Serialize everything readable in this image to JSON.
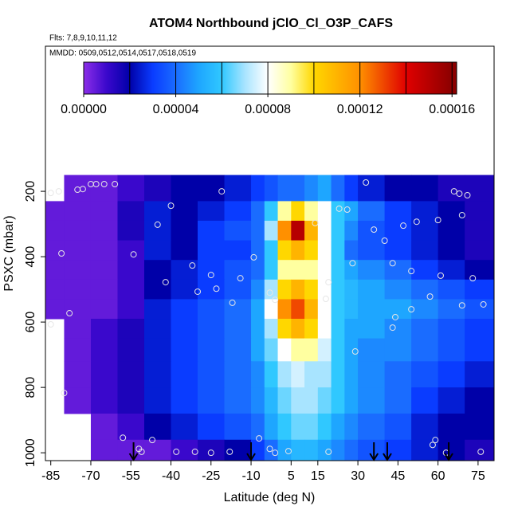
{
  "chart_data": {
    "type": "heatmap",
    "title": "ATOM4 Northbound jClO_Cl_O3P_CAFS",
    "flights_label": "Flts: 7,8,9,10,11,12",
    "dates_label": "MMDD: 0509,0512,0514,0517,0518,0519",
    "x_label": "Latitude (deg N)",
    "y_label": "PSXC (mbar)",
    "xlim": [
      -87,
      81
    ],
    "ylim": [
      1024,
      -244
    ],
    "xticks": [
      -85,
      -70,
      -55,
      -40,
      -25,
      -10,
      5,
      15,
      30,
      45,
      60,
      75
    ],
    "yticks": [
      200,
      400,
      600,
      800,
      1000
    ],
    "clim": [
      0,
      0.000162
    ],
    "cticks": [
      {
        "value": 0,
        "label": "0.00000"
      },
      {
        "value": 4e-05,
        "label": "0.00004"
      },
      {
        "value": 8e-05,
        "label": "0.00008"
      },
      {
        "value": 0.00012,
        "label": "0.00012"
      },
      {
        "value": 0.00016,
        "label": "0.00016"
      }
    ],
    "colorbar_breaks": [
      2e-05,
      4e-05,
      6e-05,
      8e-05,
      0.0001,
      0.00012,
      0.00014,
      0.00016
    ],
    "colormap": [
      {
        "value": 0,
        "color": "#8c2ee8"
      },
      {
        "value": 1e-05,
        "color": "#3a08cc"
      },
      {
        "value": 2e-05,
        "color": "#0000a8"
      },
      {
        "value": 3e-05,
        "color": "#0a3cff"
      },
      {
        "value": 4e-05,
        "color": "#1a6cff"
      },
      {
        "value": 5e-05,
        "color": "#1ea6ff"
      },
      {
        "value": 6e-05,
        "color": "#30c8ff"
      },
      {
        "value": 7e-05,
        "color": "#a8e4ff"
      },
      {
        "value": 8e-05,
        "color": "#ffffff"
      },
      {
        "value": 9e-05,
        "color": "#ffffa0"
      },
      {
        "value": 0.0001,
        "color": "#ffd700"
      },
      {
        "value": 0.00012,
        "color": "#ff9000"
      },
      {
        "value": 0.00014,
        "color": "#e00000"
      },
      {
        "value": 0.00016,
        "color": "#8b0000"
      }
    ],
    "x_edges": [
      -87,
      -80,
      -70,
      -60,
      -50,
      -40,
      -30,
      -20,
      -10,
      -5,
      0,
      5,
      10,
      15,
      20,
      25,
      30,
      40,
      50,
      60,
      70,
      81
    ],
    "y_edges": [
      150,
      230,
      290,
      350,
      410,
      470,
      530,
      590,
      650,
      720,
      800,
      880,
      960,
      1024
    ],
    "values": [
      [
        null,
        5e-06,
        5e-06,
        1e-05,
        1.5e-05,
        2e-05,
        2e-05,
        2.5e-05,
        3e-05,
        3.5e-05,
        4e-05,
        4e-05,
        4.5e-05,
        5e-05,
        4e-05,
        3e-05,
        2.5e-05,
        2e-05,
        2e-05,
        1.5e-05,
        1.5e-05
      ],
      [
        5e-06,
        5e-06,
        5e-06,
        1.5e-05,
        2.5e-05,
        2e-05,
        2.5e-05,
        3e-05,
        4e-05,
        6e-05,
        9e-05,
        0.0001,
        9e-05,
        8e-05,
        6e-05,
        5e-05,
        4e-05,
        3e-05,
        2.5e-05,
        2e-05,
        1.5e-05
      ],
      [
        5e-06,
        5e-06,
        5e-06,
        1.5e-05,
        2.5e-05,
        2e-05,
        3e-05,
        3.5e-05,
        4e-05,
        7e-05,
        0.00012,
        0.00015,
        0.00011,
        8e-05,
        6e-05,
        4.5e-05,
        3.5e-05,
        3e-05,
        2.5e-05,
        2e-05,
        1.5e-05
      ],
      [
        5e-06,
        5e-06,
        5e-06,
        1e-05,
        2.5e-05,
        2e-05,
        3e-05,
        3e-05,
        4e-05,
        6e-05,
        0.0001,
        0.00011,
        0.0001,
        8e-05,
        6e-05,
        4e-05,
        3.5e-05,
        3e-05,
        2.5e-05,
        2e-05,
        1.5e-05
      ],
      [
        5e-06,
        5e-06,
        5e-06,
        1e-05,
        2e-05,
        2.5e-05,
        3e-05,
        3.5e-05,
        4e-05,
        6e-05,
        9e-05,
        9e-05,
        9e-05,
        8e-05,
        6e-05,
        5e-05,
        4.5e-05,
        4e-05,
        3e-05,
        2.5e-05,
        2e-05
      ],
      [
        5e-06,
        5e-06,
        5e-06,
        1e-05,
        2e-05,
        2.5e-05,
        3e-05,
        3.5e-05,
        4.5e-05,
        7e-05,
        0.0001,
        0.00011,
        0.0001,
        8e-05,
        6e-05,
        5.5e-05,
        5e-05,
        4.5e-05,
        4e-05,
        3.5e-05,
        3e-05
      ],
      [
        5e-06,
        5e-06,
        5e-06,
        1e-05,
        2.5e-05,
        3e-05,
        3.5e-05,
        4e-05,
        5e-05,
        8e-05,
        0.00012,
        0.00013,
        0.00011,
        8e-05,
        6e-05,
        5.5e-05,
        5e-05,
        5e-05,
        4.5e-05,
        4e-05,
        3.5e-05
      ],
      [
        null,
        5e-06,
        1e-05,
        1.5e-05,
        2.5e-05,
        3e-05,
        3.5e-05,
        4e-05,
        5e-05,
        7e-05,
        0.0001,
        0.00011,
        0.0001,
        8e-05,
        6e-05,
        5e-05,
        5e-05,
        4.5e-05,
        4e-05,
        3.5e-05,
        3e-05
      ],
      [
        null,
        5e-06,
        1e-05,
        1.5e-05,
        2.5e-05,
        3e-05,
        3.5e-05,
        4e-05,
        5e-05,
        6.5e-05,
        8e-05,
        9e-05,
        9e-05,
        7.5e-05,
        6e-05,
        5e-05,
        4.5e-05,
        4.5e-05,
        4e-05,
        3.5e-05,
        3e-05
      ],
      [
        null,
        5e-06,
        1e-05,
        1.5e-05,
        2.5e-05,
        3e-05,
        3.5e-05,
        4e-05,
        4.5e-05,
        6e-05,
        7e-05,
        7.5e-05,
        7e-05,
        7e-05,
        6e-05,
        5e-05,
        4.5e-05,
        4e-05,
        3.5e-05,
        3e-05,
        2.5e-05
      ],
      [
        null,
        5e-06,
        1e-05,
        1.5e-05,
        2.5e-05,
        3e-05,
        3.5e-05,
        4e-05,
        4.5e-05,
        5.5e-05,
        6.5e-05,
        7e-05,
        7e-05,
        6.5e-05,
        6e-05,
        5e-05,
        4.5e-05,
        4e-05,
        3e-05,
        2.5e-05,
        2e-05
      ],
      [
        null,
        null,
        5e-06,
        1e-05,
        2e-05,
        2.5e-05,
        3e-05,
        3.5e-05,
        4e-05,
        5e-05,
        6e-05,
        6.5e-05,
        6.5e-05,
        6e-05,
        5e-05,
        4.5e-05,
        4e-05,
        3.5e-05,
        2.5e-05,
        2e-05,
        2e-05
      ],
      [
        null,
        null,
        5e-06,
        5e-06,
        5e-06,
        1e-05,
        1.5e-05,
        2e-05,
        3e-05,
        4e-05,
        5e-05,
        5.5e-05,
        5.5e-05,
        5e-05,
        4.5e-05,
        4e-05,
        3.5e-05,
        3e-05,
        2.5e-05,
        2e-05,
        1.5e-05
      ]
    ],
    "points": {
      "x": [
        -85,
        -82,
        -75,
        -73,
        -70,
        -68,
        -65,
        -61,
        -21,
        33,
        66,
        68,
        71,
        -81,
        -78,
        -85,
        -80,
        -58,
        -52,
        -45,
        -40,
        -54,
        -32,
        -42,
        -25,
        -23,
        -30,
        -14,
        -17,
        -3,
        -9,
        -1,
        14,
        23,
        26,
        36,
        40,
        43,
        28,
        19,
        18,
        50,
        61,
        57,
        50,
        44,
        43,
        29,
        69,
        77,
        73,
        60,
        69,
        52,
        47,
        63,
        58,
        59,
        76,
        -38,
        -31,
        -25,
        -18,
        -1,
        4,
        19,
        -51,
        -47,
        -7,
        -3
      ],
      "y": [
        205,
        200,
        195,
        193,
        178,
        178,
        178,
        178,
        200,
        173,
        200,
        207,
        212,
        390,
        573,
        607,
        817,
        954,
        988,
        302,
        244,
        393,
        427,
        478,
        456,
        498,
        507,
        466,
        541,
        510,
        402,
        532,
        297,
        253,
        256,
        317,
        351,
        420,
        420,
        478,
        529,
        444,
        458,
        522,
        561,
        585,
        617,
        690,
        549,
        546,
        466,
        288,
        273,
        293,
        305,
        1000,
        976,
        961,
        997,
        997,
        997,
        1000,
        997,
        1000,
        995,
        997,
        997,
        961,
        956,
        988
      ]
    },
    "arrows_x": [
      -54,
      -10,
      36,
      41,
      64
    ]
  }
}
